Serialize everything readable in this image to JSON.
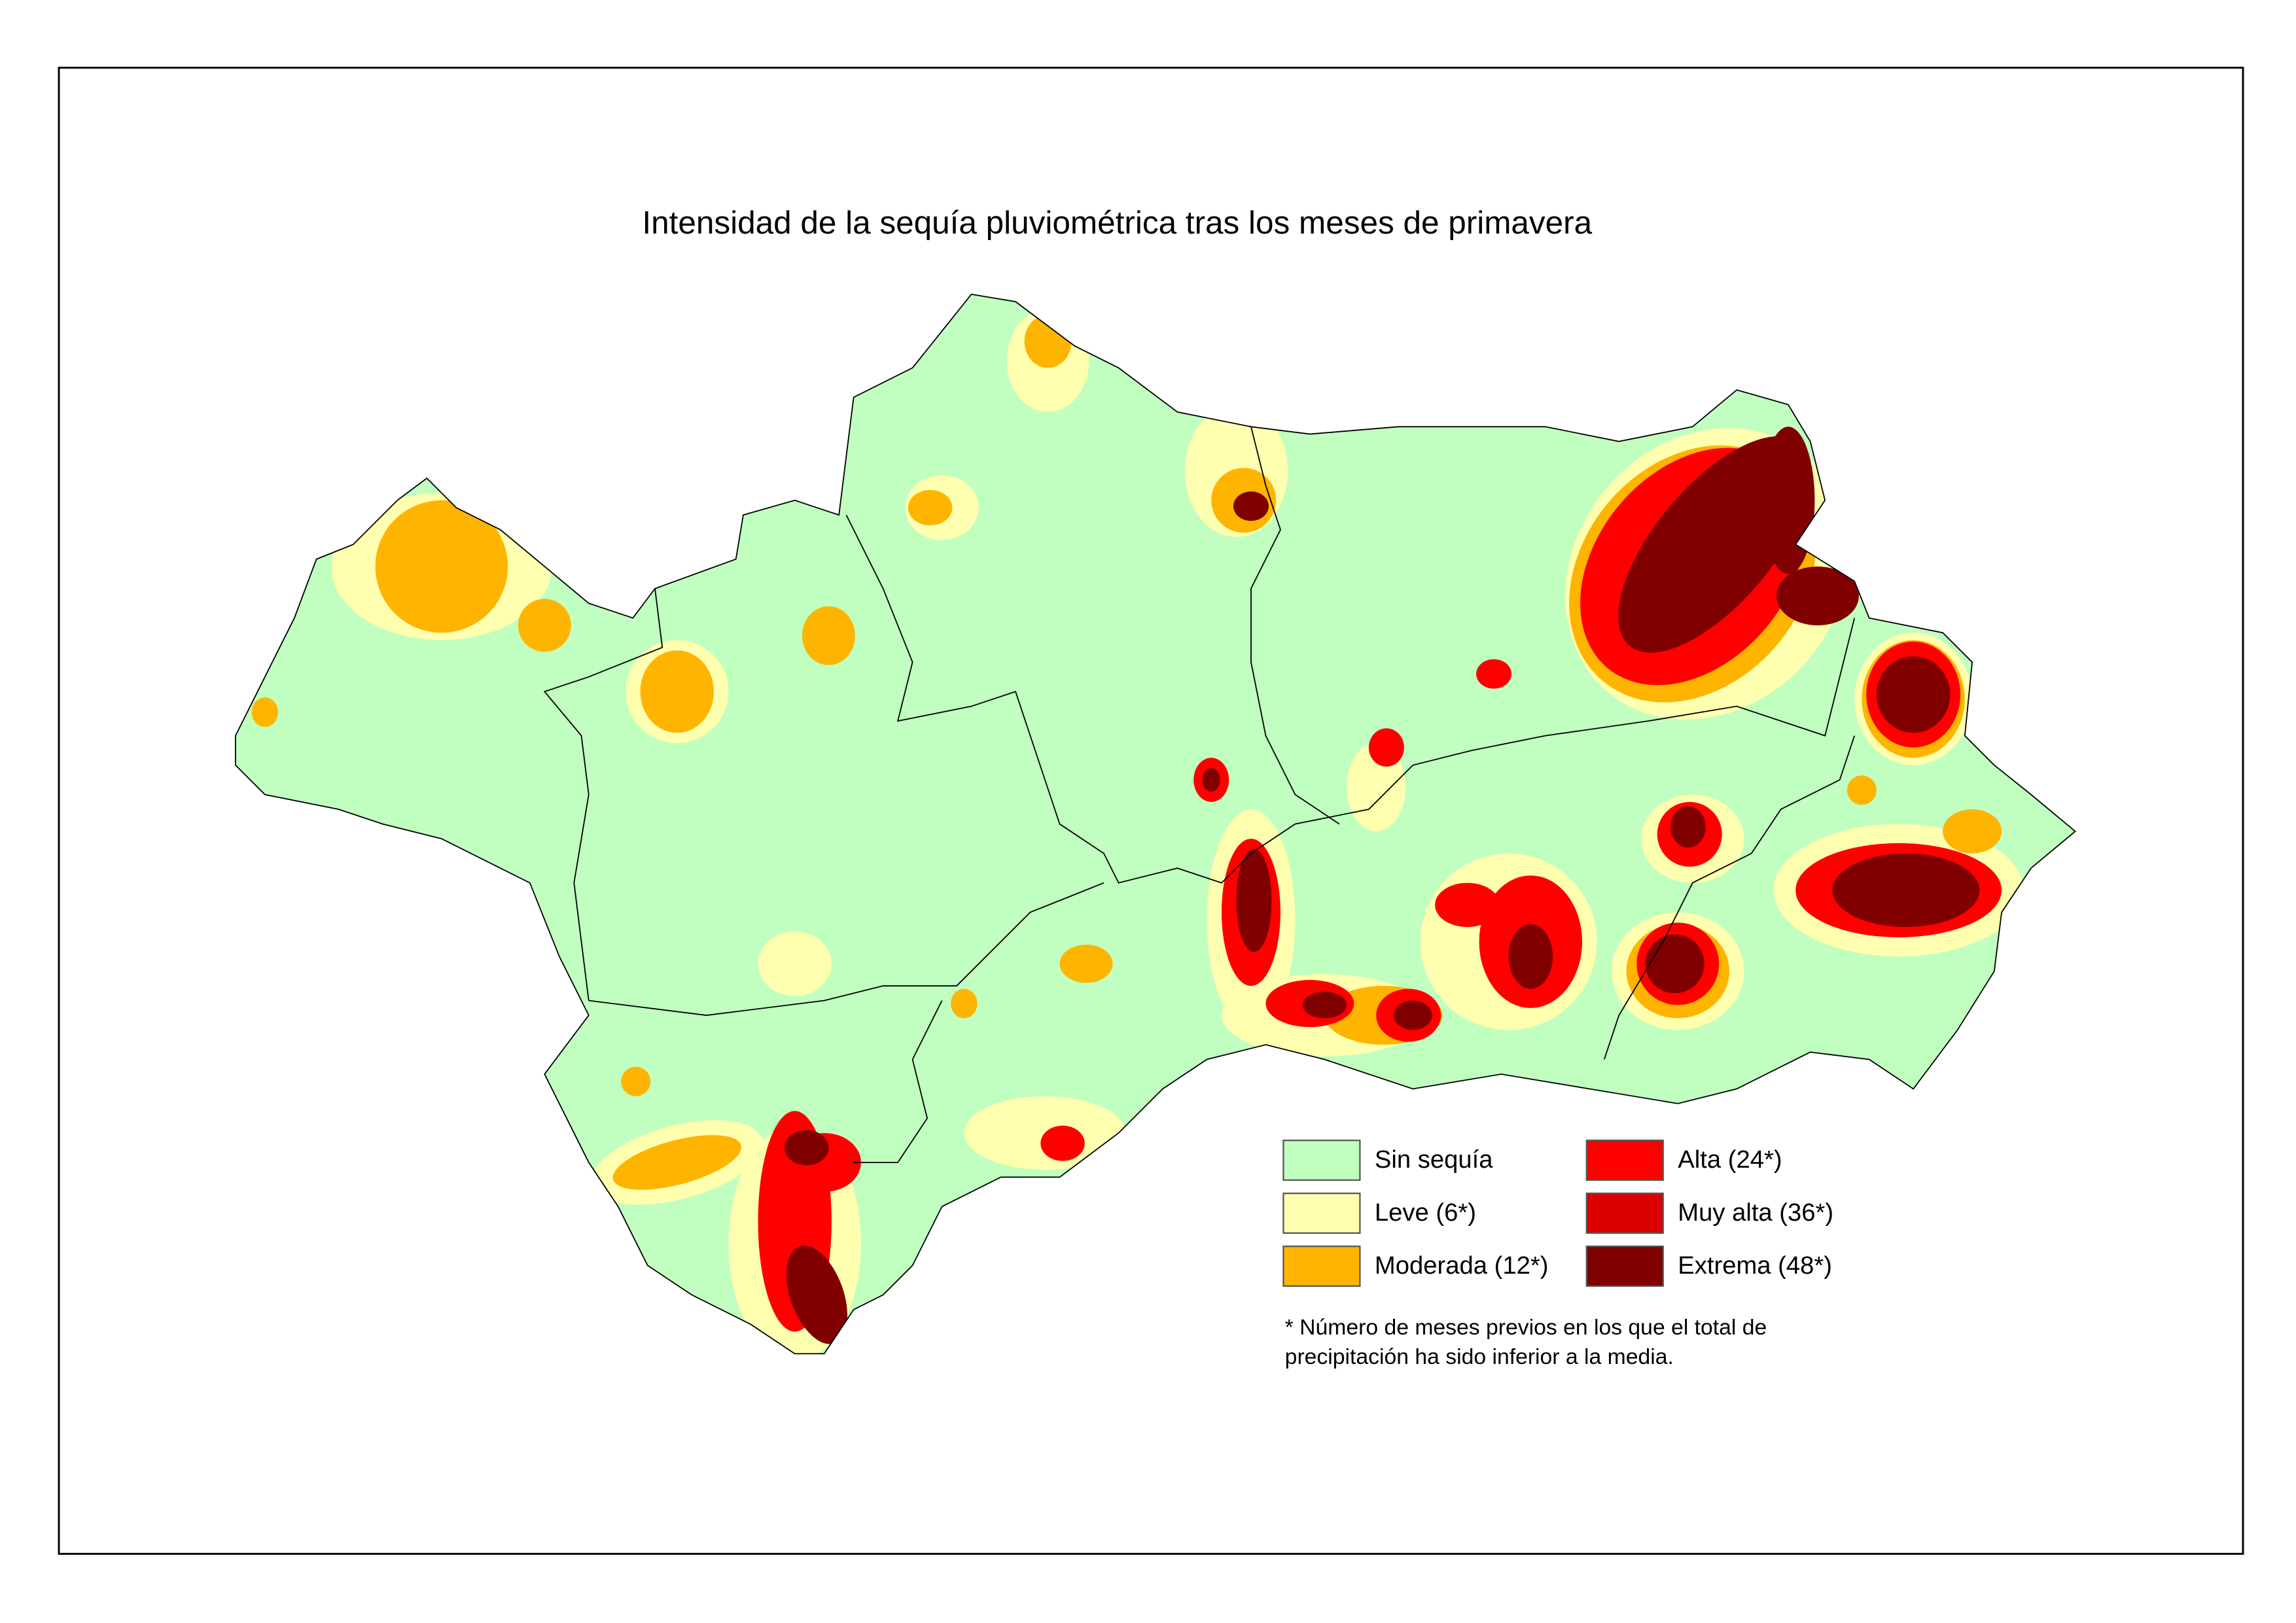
{
  "title": "Intensidad de la sequía pluviométrica tras los meses de primavera",
  "legend": [
    {
      "label": "Sin sequía",
      "color": "#c0ffc0"
    },
    {
      "label": "Leve (6*)",
      "color": "#ffffb0"
    },
    {
      "label": "Moderada (12*)",
      "color": "#ffb400"
    },
    {
      "label": "Alta (24*)",
      "color": "#ff0000"
    },
    {
      "label": "Muy alta (36*)",
      "color": "#dd0000"
    },
    {
      "label": "Extrema (48*)",
      "color": "#800000"
    }
  ],
  "footnote": [
    "* Número de meses previos en los que el total de",
    "precipitación ha sido inferior a la media."
  ]
}
